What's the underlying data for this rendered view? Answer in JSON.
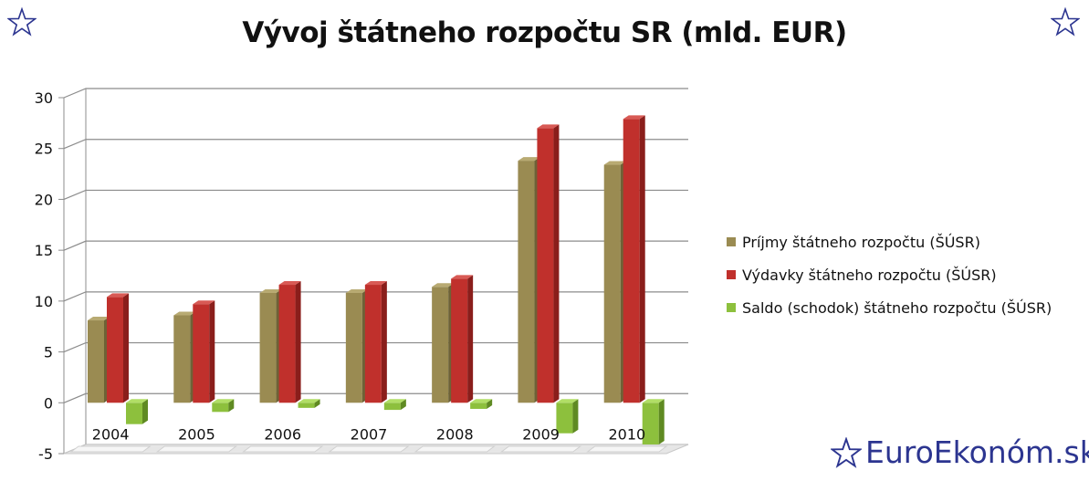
{
  "brand": "EuroEkonóm.sk",
  "colors": {
    "prijmy": "#9a8b52",
    "vydavky": "#c0302c",
    "saldo": "#8dc03d",
    "brand": "#2c3590",
    "grid": "#8c8c8c"
  },
  "chart_data": {
    "type": "bar",
    "title": "Vývoj štátneho rozpočtu SR (mld. EUR)",
    "xlabel": "",
    "ylabel": "",
    "categories": [
      "2004",
      "2005",
      "2006",
      "2007",
      "2008",
      "2009",
      "2010"
    ],
    "ylim": [
      -5,
      30
    ],
    "yticks": [
      -5,
      0,
      5,
      10,
      15,
      20,
      25,
      30
    ],
    "grid": true,
    "legend": "right",
    "series": [
      {
        "name": "Príjmy štátneho rozpočtu (ŠÚSR)",
        "values": [
          8.1,
          8.6,
          10.8,
          10.8,
          11.4,
          23.8,
          23.4
        ]
      },
      {
        "name": "Výdavky štátneho rozpočtu (ŠÚSR)",
        "values": [
          10.4,
          9.7,
          11.6,
          11.6,
          12.2,
          27.0,
          27.9
        ]
      },
      {
        "name": "Saldo (schodok) štátneho rozpočtu (ŠÚSR)",
        "values": [
          -2.1,
          -0.9,
          -0.5,
          -0.7,
          -0.6,
          -3.0,
          -4.1
        ]
      }
    ]
  }
}
